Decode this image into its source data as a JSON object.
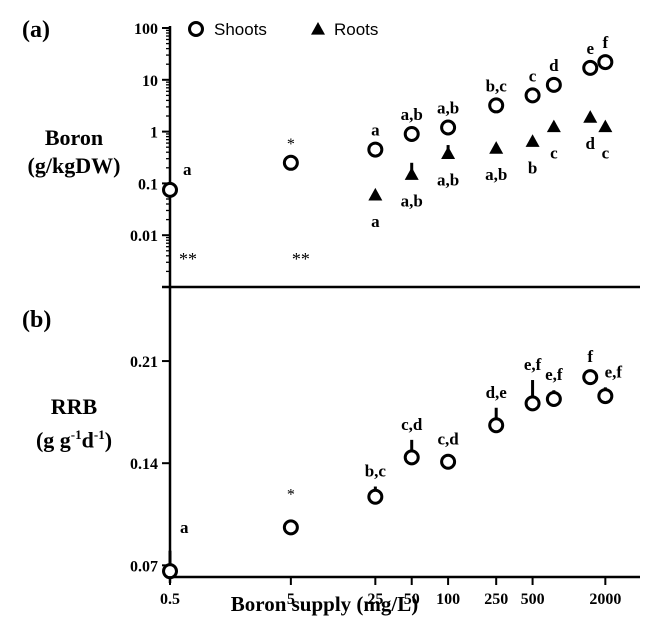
{
  "chart_data": [
    {
      "panel_label": "(a)",
      "type": "scatter",
      "ylabel_line1": "Boron",
      "ylabel_line2": "(g/kgDW)",
      "yscale": "log",
      "ylim": [
        0.001,
        100
      ],
      "yticks": [
        {
          "value": 100,
          "label": "100"
        },
        {
          "value": 10,
          "label": "10"
        },
        {
          "value": 1,
          "label": "1"
        },
        {
          "value": 0.1,
          "label": "0.1"
        },
        {
          "value": 0.01,
          "label": "0.01"
        }
      ],
      "legend": [
        {
          "name": "Shoots",
          "marker": "open-circle"
        },
        {
          "name": "Roots",
          "marker": "filled-triangle"
        }
      ],
      "legend_position": "top",
      "series": [
        {
          "name": "Shoots",
          "marker": "open-circle",
          "points": [
            {
              "x": 0.5,
              "y": 0.075,
              "label": "a",
              "label_pos": "above"
            },
            {
              "x": 5,
              "y": 0.25,
              "label": "*",
              "label_pos": "above"
            },
            {
              "x": 25,
              "y": 0.45,
              "label": "a",
              "label_pos": "above"
            },
            {
              "x": 50,
              "y": 0.9,
              "label": "a,b",
              "label_pos": "above"
            },
            {
              "x": 100,
              "y": 1.2,
              "label": "a,b",
              "label_pos": "above"
            },
            {
              "x": 250,
              "y": 3.2,
              "label": "b,c",
              "label_pos": "above"
            },
            {
              "x": 500,
              "y": 5,
              "label": "c",
              "label_pos": "above"
            },
            {
              "x": 750,
              "y": 8,
              "label": "d",
              "label_pos": "above"
            },
            {
              "x": 1500,
              "y": 17,
              "label": "e",
              "label_pos": "above"
            },
            {
              "x": 2000,
              "y": 22,
              "label": "f",
              "label_pos": "above"
            }
          ]
        },
        {
          "name": "Roots",
          "marker": "filled-triangle",
          "points": [
            {
              "x": 25,
              "y": 0.06,
              "label": "a",
              "label_pos": "below"
            },
            {
              "x": 50,
              "y": 0.15,
              "label": "a,b",
              "label_pos": "below",
              "err_hi": 0.25
            },
            {
              "x": 100,
              "y": 0.38,
              "label": "a,b",
              "label_pos": "below",
              "err_hi": 0.55
            },
            {
              "x": 250,
              "y": 0.48,
              "label": "a,b",
              "label_pos": "below"
            },
            {
              "x": 500,
              "y": 0.65,
              "label": "b",
              "label_pos": "below"
            },
            {
              "x": 750,
              "y": 1.25,
              "label": "c",
              "label_pos": "below"
            },
            {
              "x": 1500,
              "y": 1.9,
              "label": "d",
              "label_pos": "below"
            },
            {
              "x": 2000,
              "y": 1.25,
              "label": "c",
              "label_pos": "below"
            }
          ]
        }
      ],
      "annotations": [
        {
          "x": 0.5,
          "y": 0.004,
          "text": "**"
        },
        {
          "x": 5,
          "y": 0.004,
          "text": "**"
        }
      ]
    },
    {
      "panel_label": "(b)",
      "type": "scatter",
      "ylabel_line1": "RRB",
      "ylabel_line2_parts": [
        "(g g",
        "-1",
        "d",
        "-1",
        ")"
      ],
      "yscale": "linear",
      "ylim": [
        0.062,
        0.245
      ],
      "yticks": [
        {
          "value": 0.21,
          "label": "0.21"
        },
        {
          "value": 0.14,
          "label": "0.14"
        },
        {
          "value": 0.07,
          "label": "0.07"
        }
      ],
      "series": [
        {
          "name": "RRB",
          "marker": "open-circle",
          "points": [
            {
              "x": 0.5,
              "y": 0.066,
              "label": "a",
              "err_hi": 0.08
            },
            {
              "x": 5,
              "y": 0.096,
              "label": "*"
            },
            {
              "x": 25,
              "y": 0.117,
              "label": "b,c",
              "err_hi": 0.124
            },
            {
              "x": 50,
              "y": 0.144,
              "label": "c,d",
              "err_hi": 0.156
            },
            {
              "x": 100,
              "y": 0.141,
              "label": "c,d",
              "err_hi": 0.146
            },
            {
              "x": 250,
              "y": 0.166,
              "label": "d,e",
              "err_hi": 0.178
            },
            {
              "x": 500,
              "y": 0.181,
              "label": "e,f",
              "err_hi": 0.197
            },
            {
              "x": 750,
              "y": 0.184,
              "label": "e,f",
              "err_hi": 0.19
            },
            {
              "x": 1500,
              "y": 0.199,
              "label": "f"
            },
            {
              "x": 2000,
              "y": 0.186,
              "label": "e,f",
              "err_hi": 0.192
            }
          ]
        }
      ]
    }
  ],
  "x_axis": {
    "xlabel": "Boron supply (mg/L)",
    "xscale": "log",
    "xlim": [
      0.5,
      2800
    ],
    "ticks": [
      {
        "value": 0.5,
        "label": "0.5"
      },
      {
        "value": 5,
        "label": "5"
      },
      {
        "value": 25,
        "label": "25"
      },
      {
        "value": 50,
        "label": "50"
      },
      {
        "value": 100,
        "label": "100"
      },
      {
        "value": 250,
        "label": "250"
      },
      {
        "value": 500,
        "label": "500"
      },
      {
        "value": 2000,
        "label": "2000"
      }
    ]
  }
}
